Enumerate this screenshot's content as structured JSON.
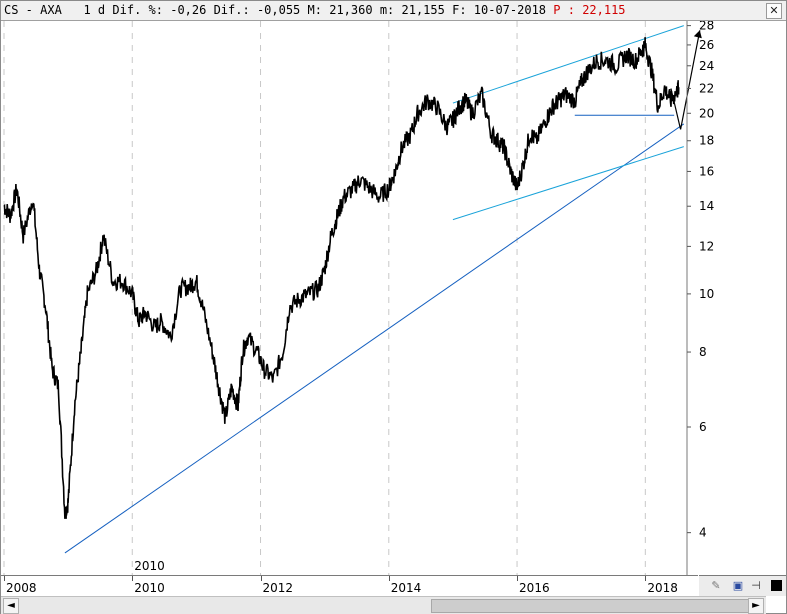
{
  "header": {
    "symbol_prefix": "CS - AXA",
    "timeframe": "1 d",
    "diff_pct_label": "Dif. %:",
    "diff_pct": "-0,26",
    "diff_label": "Dif.:",
    "diff": "-0,055",
    "max_label": "M:",
    "max": "21,360",
    "min_label": "m:",
    "min": "21,155",
    "date_label": "F:",
    "date": "10-07-2018",
    "price_label": "P :",
    "price": "22,115",
    "close_icon": "close-x-icon"
  },
  "chart_data": {
    "type": "line",
    "y_scale": "log",
    "ylim": [
      3.4,
      28.5
    ],
    "x_range": [
      2008.0,
      2018.65
    ],
    "y_ticks": [
      "28",
      "26",
      "24",
      "22",
      "20",
      "18",
      "16",
      "14",
      "12",
      "10",
      "8",
      "6",
      "4"
    ],
    "x_ticks": [
      "2008",
      "2010",
      "2012",
      "2014",
      "2016",
      "2018"
    ],
    "x_annotation": "2010",
    "series": [
      {
        "x": [
          2008.0,
          2008.1,
          2008.2,
          2008.3,
          2008.45,
          2008.55,
          2008.65,
          2008.75,
          2008.85,
          2008.95,
          2009.0,
          2009.1,
          2009.2,
          2009.3,
          2009.45,
          2009.55,
          2009.7,
          2009.85,
          2010.0,
          2010.1,
          2010.2,
          2010.35,
          2010.45,
          2010.6,
          2010.75,
          2010.9,
          2011.0,
          2011.1,
          2011.25,
          2011.35,
          2011.45,
          2011.55,
          2011.65,
          2011.72,
          2011.8,
          2011.95,
          2012.05,
          2012.2,
          2012.35,
          2012.45,
          2012.6,
          2012.75,
          2012.9,
          2013.0,
          2013.1,
          2013.2,
          2013.3,
          2013.45,
          2013.55,
          2013.7,
          2013.85,
          2014.0,
          2014.1,
          2014.2,
          2014.35,
          2014.45,
          2014.6,
          2014.75,
          2014.9,
          2015.0,
          2015.1,
          2015.2,
          2015.3,
          2015.45,
          2015.6,
          2015.7,
          2015.8,
          2015.9,
          2016.0,
          2016.1,
          2016.2,
          2016.3,
          2016.45,
          2016.55,
          2016.65,
          2016.75,
          2016.9,
          2017.0,
          2017.1,
          2017.25,
          2017.4,
          2017.55,
          2017.7,
          2017.85,
          2017.95,
          2018.0,
          2018.1,
          2018.2,
          2018.3,
          2018.4,
          2018.5,
          2018.52
        ],
        "values": [
          14.0,
          13.5,
          15.0,
          12.5,
          14.5,
          11.0,
          9.5,
          7.5,
          7.0,
          4.3,
          4.5,
          6.5,
          8.0,
          10.0,
          11.0,
          12.5,
          10.5,
          10.5,
          10.0,
          9.0,
          9.3,
          8.8,
          9.0,
          8.5,
          10.2,
          10.3,
          10.5,
          9.5,
          8.0,
          7.0,
          6.2,
          7.0,
          6.5,
          8.0,
          8.5,
          8.0,
          7.5,
          7.2,
          8.0,
          9.5,
          9.8,
          10.0,
          10.2,
          11.0,
          12.5,
          13.5,
          14.5,
          15.0,
          15.5,
          15.0,
          14.5,
          15.0,
          16.0,
          17.5,
          18.5,
          20.0,
          21.0,
          20.5,
          19.0,
          19.5,
          20.5,
          21.0,
          20.0,
          21.5,
          18.5,
          18.0,
          17.5,
          16.0,
          15.0,
          16.5,
          18.5,
          18.0,
          19.5,
          20.5,
          21.0,
          21.5,
          21.0,
          22.5,
          23.5,
          24.5,
          24.5,
          24.0,
          25.0,
          24.5,
          25.5,
          26.0,
          23.5,
          20.5,
          22.0,
          21.0,
          21.8,
          22.1
        ]
      }
    ]
  },
  "tools": {
    "edit_icon": "pencil-icon",
    "save_icon": "floppy-disk-icon",
    "pin_icon": "pin-icon",
    "color_icon": "black-square-icon"
  },
  "scrollbar": {
    "left_arrow": "◄",
    "right_arrow": "►"
  }
}
